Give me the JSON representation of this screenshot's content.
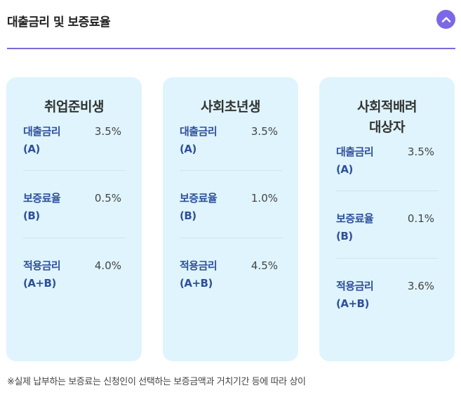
{
  "header": {
    "title": "대출금리 및 보증료율",
    "toggle_icon": "chevron-up-icon",
    "accent_color": "#7b68e6"
  },
  "cards": [
    {
      "title": "취업준비생",
      "rows": [
        {
          "label_1": "대출금리",
          "label_2": "(A)",
          "value": "3.5%"
        },
        {
          "label_1": "보증료율",
          "label_2": "(B)",
          "value": "0.5%"
        },
        {
          "label_1": "적용금리",
          "label_2": "(A+B)",
          "value": "4.0%"
        }
      ]
    },
    {
      "title": "사회초년생",
      "rows": [
        {
          "label_1": "대출금리",
          "label_2": "(A)",
          "value": "3.5%"
        },
        {
          "label_1": "보증료율",
          "label_2": "(B)",
          "value": "1.0%"
        },
        {
          "label_1": "적용금리",
          "label_2": "(A+B)",
          "value": "4.5%"
        }
      ]
    },
    {
      "title_1": "사회적배려",
      "title_2": "대상자",
      "rows": [
        {
          "label_1": "대출금리",
          "label_2": "(A)",
          "value": "3.5%"
        },
        {
          "label_1": "보증료율",
          "label_2": "(B)",
          "value": "0.1%"
        },
        {
          "label_1": "적용금리",
          "label_2": "(A+B)",
          "value": "3.6%"
        }
      ]
    }
  ],
  "footnote": "※실제 납부하는 보증료는 신청인이 선택하는 보증금액과 거치기간 등에 따라 상이",
  "colors": {
    "card_background": "#dff4fc",
    "label_text": "#2e4f9c",
    "divider": "#7b68d9"
  }
}
